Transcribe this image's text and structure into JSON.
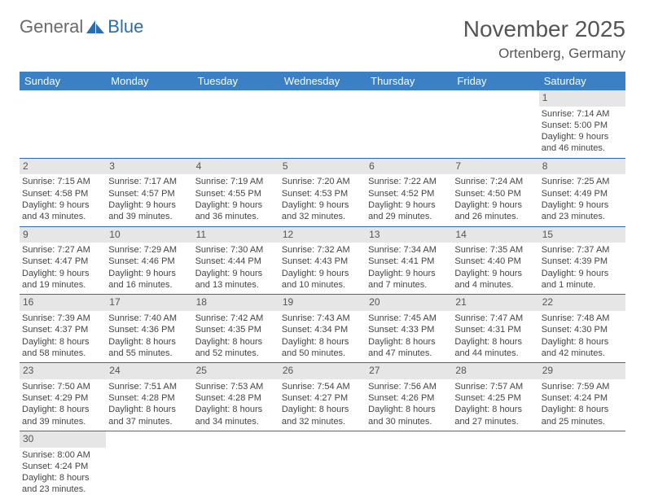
{
  "logo": {
    "text1": "General",
    "text2": "Blue"
  },
  "title": "November 2025",
  "location": "Ortenberg, Germany",
  "colors": {
    "header_bg": "#3b7fc4",
    "header_fg": "#ffffff",
    "daynum_bg": "#e6e6e6",
    "row_border": "#2a6db0",
    "text": "#444444",
    "title": "#555555"
  },
  "dow": [
    "Sunday",
    "Monday",
    "Tuesday",
    "Wednesday",
    "Thursday",
    "Friday",
    "Saturday"
  ],
  "weeks": [
    [
      null,
      null,
      null,
      null,
      null,
      null,
      {
        "n": "1",
        "sunrise": "Sunrise: 7:14 AM",
        "sunset": "Sunset: 5:00 PM",
        "d1": "Daylight: 9 hours",
        "d2": "and 46 minutes."
      }
    ],
    [
      {
        "n": "2",
        "sunrise": "Sunrise: 7:15 AM",
        "sunset": "Sunset: 4:58 PM",
        "d1": "Daylight: 9 hours",
        "d2": "and 43 minutes."
      },
      {
        "n": "3",
        "sunrise": "Sunrise: 7:17 AM",
        "sunset": "Sunset: 4:57 PM",
        "d1": "Daylight: 9 hours",
        "d2": "and 39 minutes."
      },
      {
        "n": "4",
        "sunrise": "Sunrise: 7:19 AM",
        "sunset": "Sunset: 4:55 PM",
        "d1": "Daylight: 9 hours",
        "d2": "and 36 minutes."
      },
      {
        "n": "5",
        "sunrise": "Sunrise: 7:20 AM",
        "sunset": "Sunset: 4:53 PM",
        "d1": "Daylight: 9 hours",
        "d2": "and 32 minutes."
      },
      {
        "n": "6",
        "sunrise": "Sunrise: 7:22 AM",
        "sunset": "Sunset: 4:52 PM",
        "d1": "Daylight: 9 hours",
        "d2": "and 29 minutes."
      },
      {
        "n": "7",
        "sunrise": "Sunrise: 7:24 AM",
        "sunset": "Sunset: 4:50 PM",
        "d1": "Daylight: 9 hours",
        "d2": "and 26 minutes."
      },
      {
        "n": "8",
        "sunrise": "Sunrise: 7:25 AM",
        "sunset": "Sunset: 4:49 PM",
        "d1": "Daylight: 9 hours",
        "d2": "and 23 minutes."
      }
    ],
    [
      {
        "n": "9",
        "sunrise": "Sunrise: 7:27 AM",
        "sunset": "Sunset: 4:47 PM",
        "d1": "Daylight: 9 hours",
        "d2": "and 19 minutes."
      },
      {
        "n": "10",
        "sunrise": "Sunrise: 7:29 AM",
        "sunset": "Sunset: 4:46 PM",
        "d1": "Daylight: 9 hours",
        "d2": "and 16 minutes."
      },
      {
        "n": "11",
        "sunrise": "Sunrise: 7:30 AM",
        "sunset": "Sunset: 4:44 PM",
        "d1": "Daylight: 9 hours",
        "d2": "and 13 minutes."
      },
      {
        "n": "12",
        "sunrise": "Sunrise: 7:32 AM",
        "sunset": "Sunset: 4:43 PM",
        "d1": "Daylight: 9 hours",
        "d2": "and 10 minutes."
      },
      {
        "n": "13",
        "sunrise": "Sunrise: 7:34 AM",
        "sunset": "Sunset: 4:41 PM",
        "d1": "Daylight: 9 hours",
        "d2": "and 7 minutes."
      },
      {
        "n": "14",
        "sunrise": "Sunrise: 7:35 AM",
        "sunset": "Sunset: 4:40 PM",
        "d1": "Daylight: 9 hours",
        "d2": "and 4 minutes."
      },
      {
        "n": "15",
        "sunrise": "Sunrise: 7:37 AM",
        "sunset": "Sunset: 4:39 PM",
        "d1": "Daylight: 9 hours",
        "d2": "and 1 minute."
      }
    ],
    [
      {
        "n": "16",
        "sunrise": "Sunrise: 7:39 AM",
        "sunset": "Sunset: 4:37 PM",
        "d1": "Daylight: 8 hours",
        "d2": "and 58 minutes."
      },
      {
        "n": "17",
        "sunrise": "Sunrise: 7:40 AM",
        "sunset": "Sunset: 4:36 PM",
        "d1": "Daylight: 8 hours",
        "d2": "and 55 minutes."
      },
      {
        "n": "18",
        "sunrise": "Sunrise: 7:42 AM",
        "sunset": "Sunset: 4:35 PM",
        "d1": "Daylight: 8 hours",
        "d2": "and 52 minutes."
      },
      {
        "n": "19",
        "sunrise": "Sunrise: 7:43 AM",
        "sunset": "Sunset: 4:34 PM",
        "d1": "Daylight: 8 hours",
        "d2": "and 50 minutes."
      },
      {
        "n": "20",
        "sunrise": "Sunrise: 7:45 AM",
        "sunset": "Sunset: 4:33 PM",
        "d1": "Daylight: 8 hours",
        "d2": "and 47 minutes."
      },
      {
        "n": "21",
        "sunrise": "Sunrise: 7:47 AM",
        "sunset": "Sunset: 4:31 PM",
        "d1": "Daylight: 8 hours",
        "d2": "and 44 minutes."
      },
      {
        "n": "22",
        "sunrise": "Sunrise: 7:48 AM",
        "sunset": "Sunset: 4:30 PM",
        "d1": "Daylight: 8 hours",
        "d2": "and 42 minutes."
      }
    ],
    [
      {
        "n": "23",
        "sunrise": "Sunrise: 7:50 AM",
        "sunset": "Sunset: 4:29 PM",
        "d1": "Daylight: 8 hours",
        "d2": "and 39 minutes."
      },
      {
        "n": "24",
        "sunrise": "Sunrise: 7:51 AM",
        "sunset": "Sunset: 4:28 PM",
        "d1": "Daylight: 8 hours",
        "d2": "and 37 minutes."
      },
      {
        "n": "25",
        "sunrise": "Sunrise: 7:53 AM",
        "sunset": "Sunset: 4:28 PM",
        "d1": "Daylight: 8 hours",
        "d2": "and 34 minutes."
      },
      {
        "n": "26",
        "sunrise": "Sunrise: 7:54 AM",
        "sunset": "Sunset: 4:27 PM",
        "d1": "Daylight: 8 hours",
        "d2": "and 32 minutes."
      },
      {
        "n": "27",
        "sunrise": "Sunrise: 7:56 AM",
        "sunset": "Sunset: 4:26 PM",
        "d1": "Daylight: 8 hours",
        "d2": "and 30 minutes."
      },
      {
        "n": "28",
        "sunrise": "Sunrise: 7:57 AM",
        "sunset": "Sunset: 4:25 PM",
        "d1": "Daylight: 8 hours",
        "d2": "and 27 minutes."
      },
      {
        "n": "29",
        "sunrise": "Sunrise: 7:59 AM",
        "sunset": "Sunset: 4:24 PM",
        "d1": "Daylight: 8 hours",
        "d2": "and 25 minutes."
      }
    ],
    [
      {
        "n": "30",
        "sunrise": "Sunrise: 8:00 AM",
        "sunset": "Sunset: 4:24 PM",
        "d1": "Daylight: 8 hours",
        "d2": "and 23 minutes."
      },
      null,
      null,
      null,
      null,
      null,
      null
    ]
  ]
}
